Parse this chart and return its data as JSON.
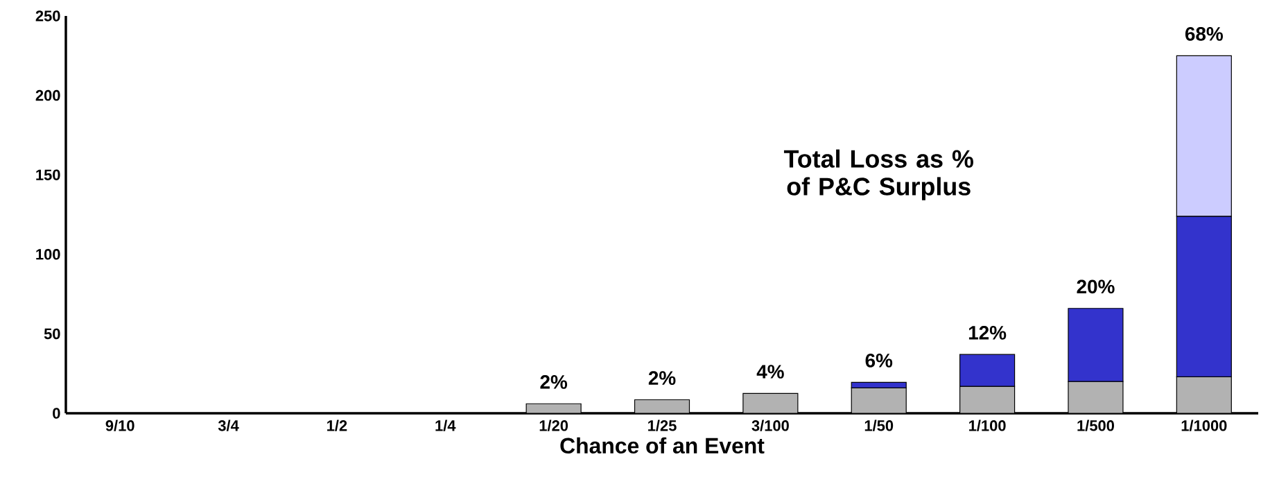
{
  "chart_data": {
    "type": "bar",
    "stacked": true,
    "categories": [
      "9/10",
      "3/4",
      "1/2",
      "1/4",
      "1/20",
      "1/25",
      "3/100",
      "1/50",
      "1/100",
      "1/500",
      "1/1000"
    ],
    "series": [
      {
        "color": "#b2b2b2",
        "values": [
          null,
          null,
          null,
          null,
          6,
          8.5,
          12.5,
          16,
          17,
          20,
          23
        ]
      },
      {
        "color": "#3333cc",
        "values": [
          null,
          null,
          null,
          null,
          null,
          null,
          null,
          3.5,
          20,
          46,
          101
        ]
      },
      {
        "color": "#ccccff",
        "values": [
          null,
          null,
          null,
          null,
          null,
          null,
          null,
          null,
          null,
          null,
          101
        ]
      }
    ],
    "xlabel": "Chance of an Event",
    "annotations": [
      "Total Loss as % of P&C Surplus",
      {
        "text": "2%",
        "x": "1/20",
        "y": 6
      },
      {
        "text": "2%",
        "x": "1/25",
        "y": 8.5
      },
      {
        "text": "4%",
        "x": "3/100",
        "y": 12.5
      },
      {
        "text": "6%",
        "x": "1/50",
        "y": 19.5
      },
      {
        "text": "12%",
        "x": "1/100",
        "y": 37
      },
      {
        "text": "20%",
        "x": "1/500",
        "y": 66
      },
      {
        "text": "68%",
        "x": "1/1000",
        "y": 225
      }
    ],
    "ylim": [
      0,
      250
    ],
    "yticks": [
      0,
      50,
      100,
      150,
      200,
      250
    ]
  }
}
